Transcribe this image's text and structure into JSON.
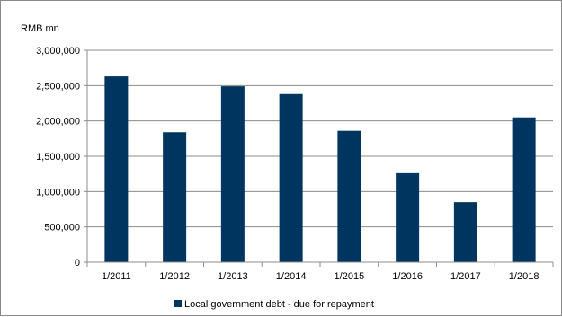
{
  "chart_data": {
    "type": "bar",
    "unit_label": "RMB  mn",
    "categories": [
      "1/2011",
      "1/2012",
      "1/2013",
      "1/2014",
      "1/2015",
      "1/2016",
      "1/2017",
      "1/2018"
    ],
    "series": [
      {
        "name": "Local government debt - due for repayment",
        "values": [
          2630000,
          1840000,
          2490000,
          2380000,
          1860000,
          1260000,
          850000,
          2050000
        ]
      }
    ],
    "ylim": [
      0,
      3000000
    ],
    "yticks": [
      "0",
      "500,000",
      "1,000,000",
      "1,500,000",
      "2,000,000",
      "2,500,000",
      "3,000,000"
    ],
    "grid": true,
    "legend_position": "bottom",
    "bar_color": "#003560"
  }
}
